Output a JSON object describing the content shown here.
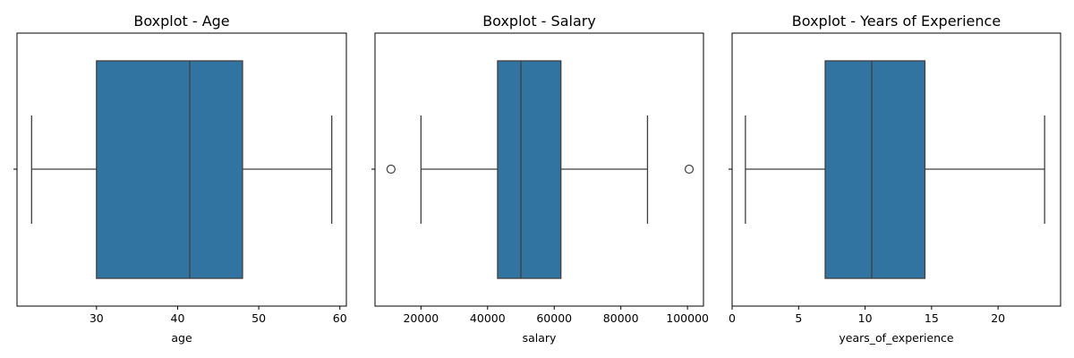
{
  "chart_data": [
    {
      "type": "box",
      "title": "Boxplot - Age",
      "xlabel": "age",
      "xlim": [
        20.2,
        60.8
      ],
      "ticks": [
        {
          "value": 30,
          "label": "30"
        },
        {
          "value": 40,
          "label": "40"
        },
        {
          "value": 50,
          "label": "50"
        },
        {
          "value": 60,
          "label": "60"
        }
      ],
      "box": {
        "whisker_low": 22,
        "q1": 30,
        "median": 41.5,
        "q3": 48,
        "whisker_high": 59
      },
      "outliers": []
    },
    {
      "type": "box",
      "title": "Boxplot - Salary",
      "xlabel": "salary",
      "xlim": [
        6200,
        104800
      ],
      "ticks": [
        {
          "value": 20000,
          "label": "20000"
        },
        {
          "value": 40000,
          "label": "40000"
        },
        {
          "value": 60000,
          "label": "60000"
        },
        {
          "value": 80000,
          "label": "80000"
        },
        {
          "value": 100000,
          "label": "100000"
        }
      ],
      "box": {
        "whisker_low": 20000,
        "q1": 43000,
        "median": 50000,
        "q3": 62000,
        "whisker_high": 88000
      },
      "outliers": [
        11000,
        100500
      ]
    },
    {
      "type": "box",
      "title": "Boxplot - Years of Experience",
      "xlabel": "years_of_experience",
      "xlim": [
        0.0,
        24.7
      ],
      "ticks": [
        {
          "value": 0,
          "label": "0"
        },
        {
          "value": 5,
          "label": "5"
        },
        {
          "value": 10,
          "label": "10"
        },
        {
          "value": 15,
          "label": "15"
        },
        {
          "value": 20,
          "label": "20"
        }
      ],
      "box": {
        "whisker_low": 1,
        "q1": 7,
        "median": 10.5,
        "q3": 14.5,
        "whisker_high": 23.5
      },
      "outliers": []
    }
  ],
  "colors": {
    "box_fill": "#3274a1",
    "line": "#3f3f3f",
    "axis": "#000000"
  }
}
